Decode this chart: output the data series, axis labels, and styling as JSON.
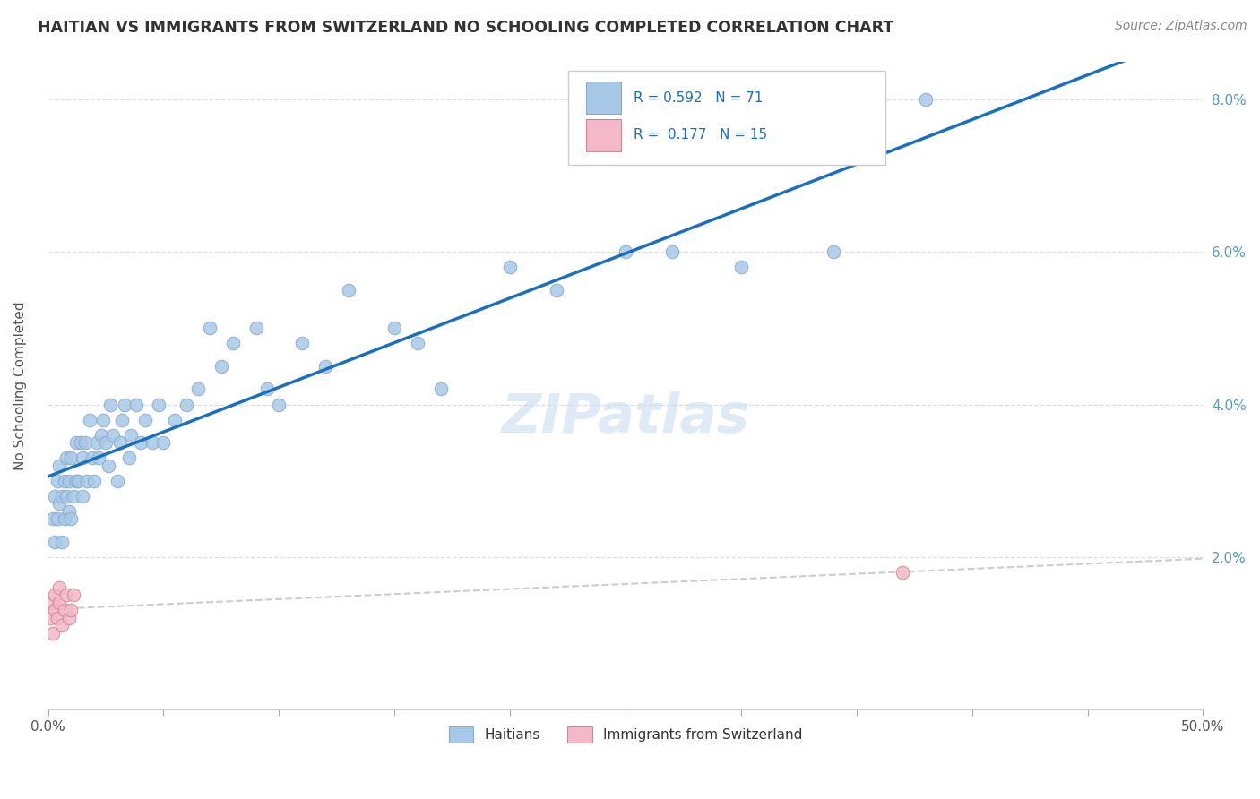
{
  "title": "HAITIAN VS IMMIGRANTS FROM SWITZERLAND NO SCHOOLING COMPLETED CORRELATION CHART",
  "source": "Source: ZipAtlas.com",
  "ylabel": "No Schooling Completed",
  "xlim": [
    0.0,
    0.5
  ],
  "ylim": [
    0.0,
    0.085
  ],
  "haitian_color": "#a8c8e8",
  "swiss_color": "#f4b8c8",
  "haitian_line_color": "#1a6fbe",
  "swiss_line_color": "#e8a0b0",
  "grid_color": "#dddddd",
  "watermark": "ZIPatlas",
  "background_color": "#ffffff",
  "haitian_x": [
    0.002,
    0.003,
    0.003,
    0.004,
    0.004,
    0.005,
    0.005,
    0.006,
    0.006,
    0.007,
    0.007,
    0.008,
    0.008,
    0.009,
    0.009,
    0.01,
    0.01,
    0.011,
    0.012,
    0.012,
    0.013,
    0.014,
    0.015,
    0.015,
    0.016,
    0.017,
    0.018,
    0.019,
    0.02,
    0.021,
    0.022,
    0.023,
    0.024,
    0.025,
    0.026,
    0.027,
    0.028,
    0.03,
    0.031,
    0.032,
    0.033,
    0.035,
    0.036,
    0.038,
    0.04,
    0.042,
    0.045,
    0.048,
    0.05,
    0.055,
    0.06,
    0.065,
    0.07,
    0.075,
    0.08,
    0.09,
    0.095,
    0.1,
    0.11,
    0.12,
    0.13,
    0.15,
    0.16,
    0.17,
    0.2,
    0.22,
    0.25,
    0.27,
    0.3,
    0.34,
    0.38
  ],
  "haitian_y": [
    0.025,
    0.028,
    0.022,
    0.025,
    0.03,
    0.027,
    0.032,
    0.022,
    0.028,
    0.03,
    0.025,
    0.028,
    0.033,
    0.026,
    0.03,
    0.025,
    0.033,
    0.028,
    0.03,
    0.035,
    0.03,
    0.035,
    0.028,
    0.033,
    0.035,
    0.03,
    0.038,
    0.033,
    0.03,
    0.035,
    0.033,
    0.036,
    0.038,
    0.035,
    0.032,
    0.04,
    0.036,
    0.03,
    0.035,
    0.038,
    0.04,
    0.033,
    0.036,
    0.04,
    0.035,
    0.038,
    0.035,
    0.04,
    0.035,
    0.038,
    0.04,
    0.042,
    0.05,
    0.045,
    0.048,
    0.05,
    0.042,
    0.04,
    0.048,
    0.045,
    0.055,
    0.05,
    0.048,
    0.042,
    0.058,
    0.055,
    0.06,
    0.06,
    0.058,
    0.06,
    0.08
  ],
  "swiss_x": [
    0.001,
    0.002,
    0.002,
    0.003,
    0.003,
    0.004,
    0.005,
    0.005,
    0.006,
    0.007,
    0.008,
    0.009,
    0.01,
    0.011,
    0.37
  ],
  "swiss_y": [
    0.012,
    0.014,
    0.01,
    0.013,
    0.015,
    0.012,
    0.014,
    0.016,
    0.011,
    0.013,
    0.015,
    0.012,
    0.013,
    0.015,
    0.018
  ]
}
